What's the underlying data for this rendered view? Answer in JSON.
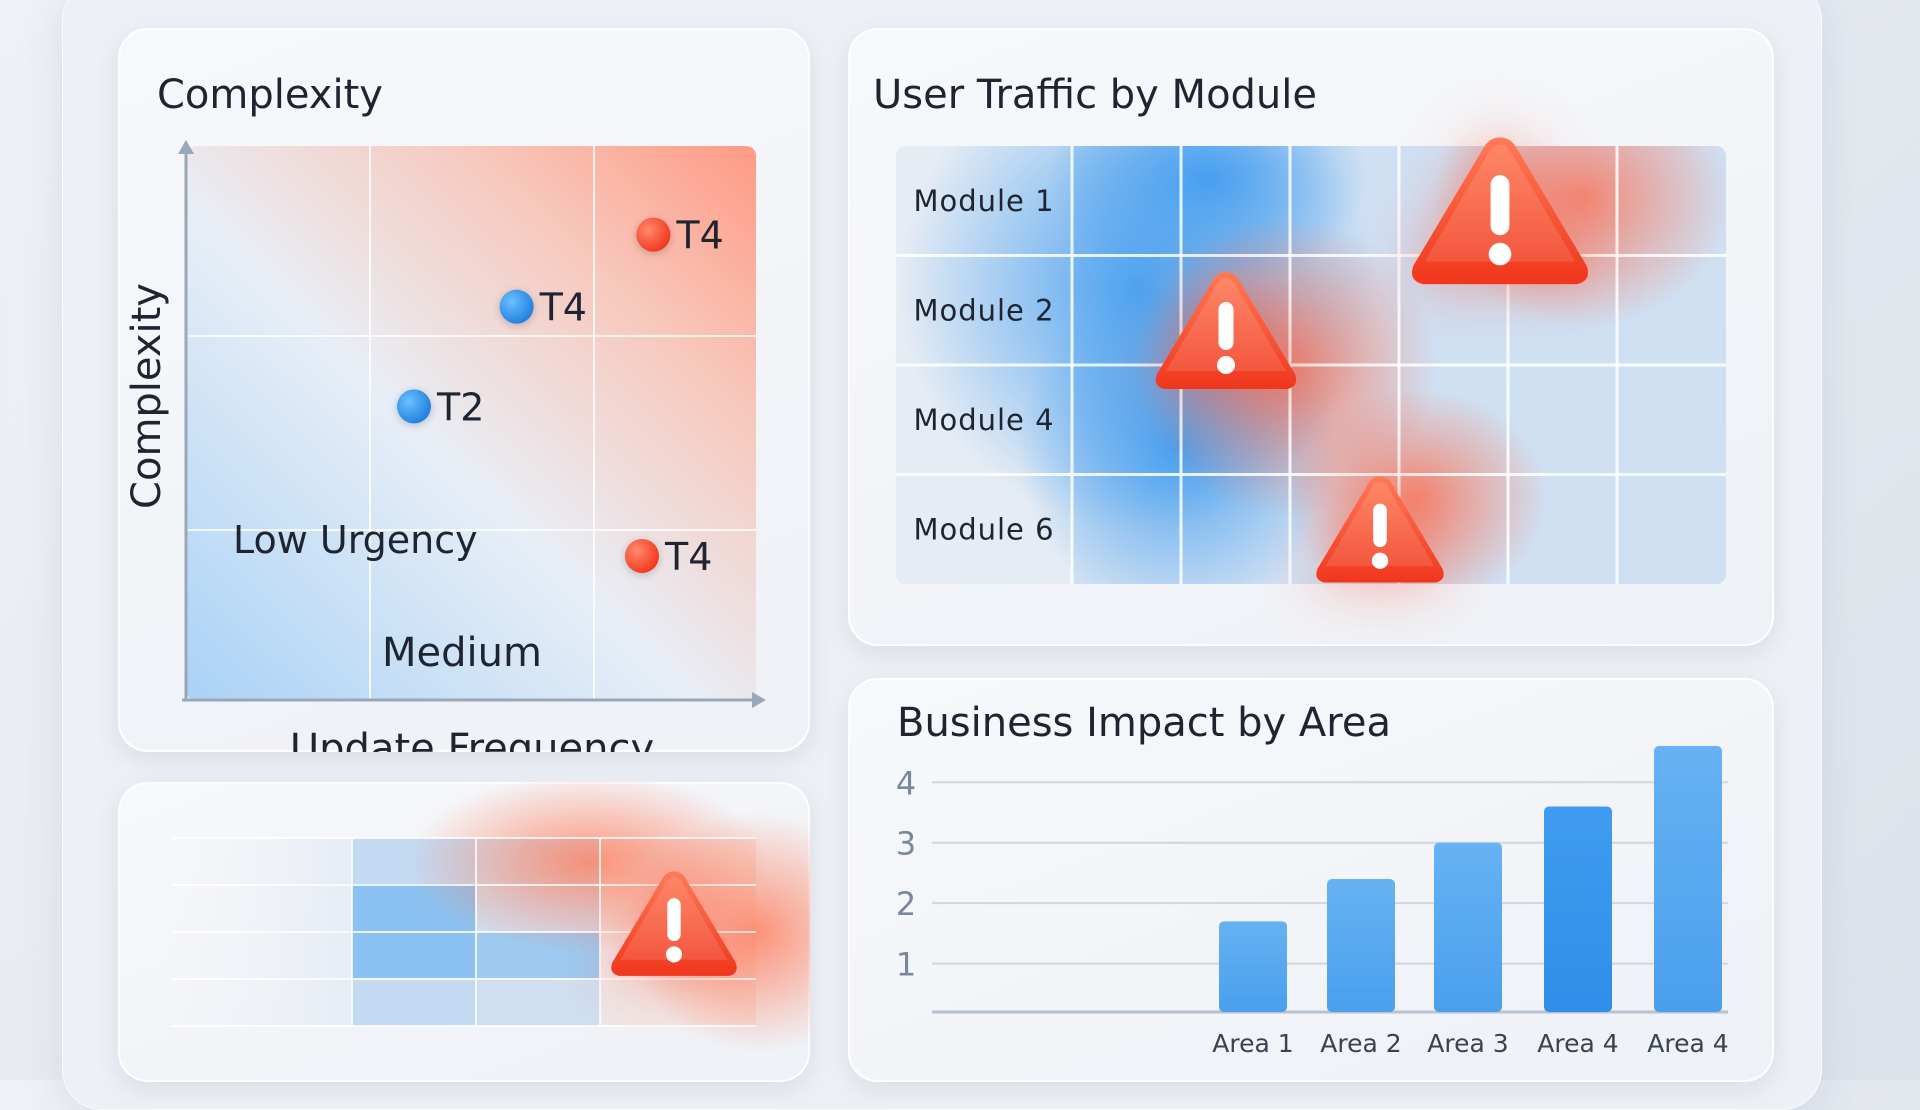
{
  "colors": {
    "warm": "#ff5a3c",
    "cool": "#3a9bf0",
    "bar": "#5aaaf0",
    "bar_accent": "#3b99ee",
    "alert": "#ff4a2e"
  },
  "icons": {
    "alert": "warning-triangle-icon"
  },
  "scatter": {
    "title": "Complexity",
    "xlabel": "Update Frequency",
    "ylabel": "Complexity",
    "zone_labels": {
      "low": "Low Urgency",
      "medium": "Medium"
    }
  },
  "heatmap": {
    "title": "User Traffic by Module",
    "rows": [
      "Module 1",
      "Module 2",
      "Module 4",
      "Module 6"
    ]
  },
  "bars": {
    "title": "Business Impact by Area"
  },
  "chart_data": [
    {
      "type": "scatter",
      "title": "Complexity",
      "xlabel": "Update Frequency",
      "ylabel": "Complexity",
      "xlim": [
        0,
        1
      ],
      "ylim": [
        0,
        1
      ],
      "grid": true,
      "points": [
        {
          "label": "T4",
          "x": 0.82,
          "y": 0.84,
          "color": "warm"
        },
        {
          "label": "T4",
          "x": 0.58,
          "y": 0.71,
          "color": "cool"
        },
        {
          "label": "T2",
          "x": 0.4,
          "y": 0.53,
          "color": "cool"
        },
        {
          "label": "T4",
          "x": 0.8,
          "y": 0.26,
          "color": "warm"
        }
      ]
    },
    {
      "type": "heatmap",
      "title": "User Traffic by Module",
      "rows": [
        "Module 1",
        "Module 2",
        "Module 4",
        "Module 6"
      ],
      "columns": 6,
      "alerts": [
        {
          "row": 0,
          "col": 3
        },
        {
          "row": 1,
          "col": 1
        },
        {
          "row": 3,
          "col": 2
        }
      ]
    },
    {
      "type": "bar",
      "title": "Business Impact by Area",
      "categories": [
        "Area 1",
        "Area 2",
        "Area 3",
        "Area 4",
        "Area 4"
      ],
      "values": [
        1.7,
        2.4,
        3.0,
        3.6,
        4.6
      ],
      "yticks": [
        1,
        2,
        3,
        4
      ],
      "ylim": [
        0.2,
        4.6
      ]
    },
    {
      "type": "heatmap",
      "rows": 4,
      "columns": 4,
      "alerts": [
        {
          "row": 1,
          "col": 3
        }
      ]
    }
  ]
}
